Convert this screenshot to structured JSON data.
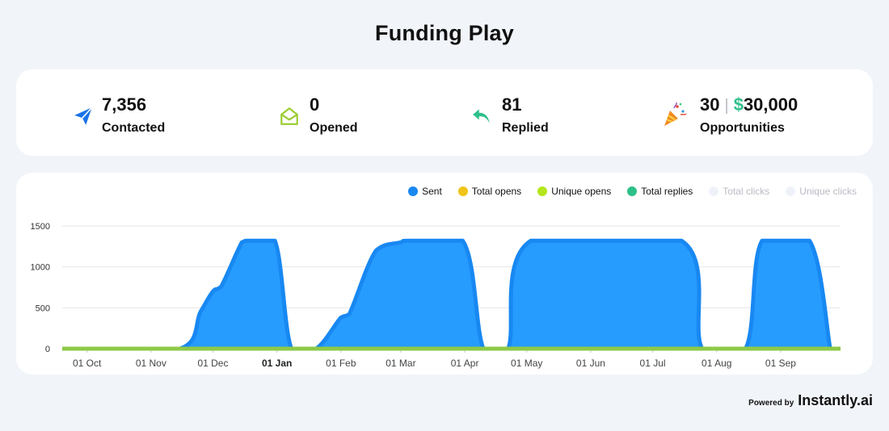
{
  "page": {
    "title": "Funding Play"
  },
  "stats": {
    "contacted": {
      "value": "7,356",
      "label": "Contacted",
      "icon": "paper-plane-icon",
      "color": "#1a73e8"
    },
    "opened": {
      "value": "0",
      "label": "Opened",
      "icon": "open-envelope-icon",
      "color": "#9acd32"
    },
    "replied": {
      "value": "81",
      "label": "Replied",
      "icon": "reply-arrow-icon",
      "color": "#2ec08a"
    },
    "opportunities": {
      "count": "30",
      "separator": "|",
      "currency": "$",
      "amount": "30,000",
      "label": "Opportunities",
      "icon": "party-popper-icon"
    }
  },
  "legend": [
    {
      "label": "Sent",
      "color": "#1888f2",
      "active": true
    },
    {
      "label": "Total opens",
      "color": "#f0c419",
      "active": true
    },
    {
      "label": "Unique opens",
      "color": "#b5e61d",
      "active": true
    },
    {
      "label": "Total replies",
      "color": "#2ec08a",
      "active": true
    },
    {
      "label": "Total clicks",
      "color": "#dfe8f3",
      "active": false
    },
    {
      "label": "Unique clicks",
      "color": "#dfe8f3",
      "active": false
    }
  ],
  "footer": {
    "powered_by": "Powered by",
    "brand": "Instantly.ai"
  },
  "chart_data": {
    "type": "area",
    "x_ticks": [
      "01 Oct",
      "01 Nov",
      "01 Dec",
      "01 Jan",
      "01 Feb",
      "01 Mar",
      "01 Apr",
      "01 May",
      "01 Jun",
      "01 Jul",
      "01 Aug",
      "01 Sep"
    ],
    "bold_tick": "01 Jan",
    "y_ticks": [
      0,
      500,
      1000,
      1500
    ],
    "ylim": [
      0,
      1500
    ],
    "grid": true,
    "legend_position": "top-right",
    "series": [
      {
        "name": "Sent",
        "color": "#1888f2",
        "points": [
          [
            "01 Oct",
            0
          ],
          [
            "15 Nov",
            0
          ],
          [
            "25 Nov",
            450
          ],
          [
            "01 Dec",
            700
          ],
          [
            "05 Dec",
            760
          ],
          [
            "15 Dec",
            1300
          ],
          [
            "18 Dec",
            1320
          ],
          [
            "31 Dec",
            1320
          ],
          [
            "08 Jan",
            0
          ],
          [
            "20 Jan",
            0
          ],
          [
            "01 Feb",
            380
          ],
          [
            "05 Feb",
            420
          ],
          [
            "18 Feb",
            1200
          ],
          [
            "01 Mar",
            1300
          ],
          [
            "05 Mar",
            1320
          ],
          [
            "31 Mar",
            1320
          ],
          [
            "10 Apr",
            0
          ],
          [
            "22 Apr",
            0
          ],
          [
            "03 May",
            1320
          ],
          [
            "15 Jul",
            1320
          ],
          [
            "25 Jul",
            0
          ],
          [
            "15 Aug",
            0
          ],
          [
            "23 Aug",
            1320
          ],
          [
            "15 Sep",
            1320
          ],
          [
            "25 Sep",
            0
          ]
        ]
      },
      {
        "name": "Total opens",
        "color": "#f0c419",
        "constant": 0
      },
      {
        "name": "Unique opens",
        "color": "#b5e61d",
        "constant": 0
      },
      {
        "name": "Total replies",
        "color": "#2ec08a",
        "constant": 0
      }
    ]
  }
}
